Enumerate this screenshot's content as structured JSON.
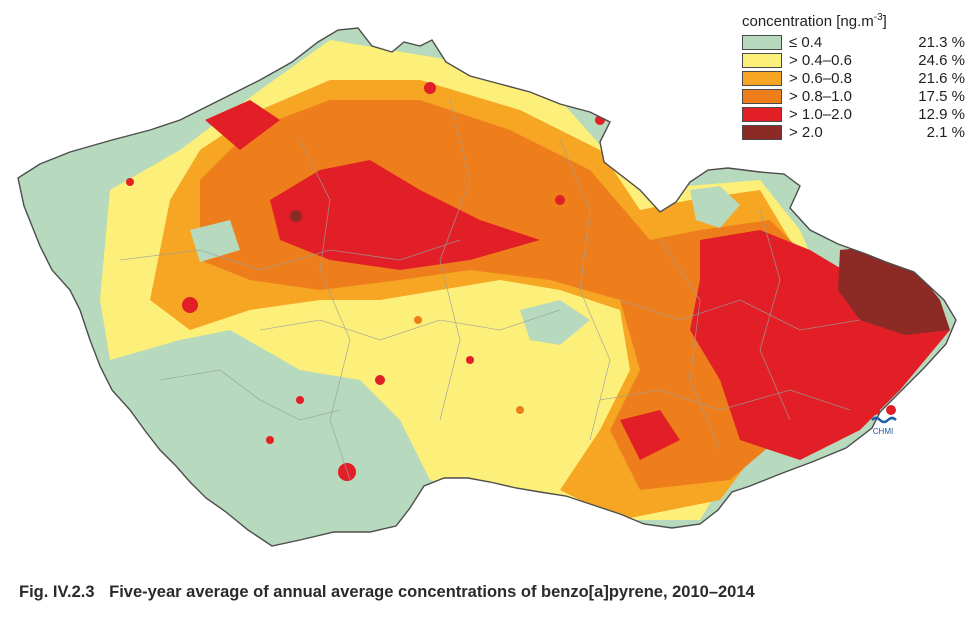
{
  "legend": {
    "title": "concentration [ng.m",
    "title_sup": "-3",
    "title_close": "]",
    "classes": [
      {
        "label": "≤ 0.4",
        "percent": "21.3 %",
        "color": "#b7d9bd"
      },
      {
        "label": "> 0.4–0.6",
        "percent": "24.6 %",
        "color": "#fdf07a"
      },
      {
        "label": "> 0.6–0.8",
        "percent": "21.6 %",
        "color": "#f6a623"
      },
      {
        "label": "> 0.8–1.0",
        "percent": "17.5 %",
        "color": "#ee7e1c"
      },
      {
        "label": "> 1.0–2.0",
        "percent": "12.9 %",
        "color": "#e21f26"
      },
      {
        "label": "> 2.0",
        "percent": "2.1 %",
        "color": "#8c2a26"
      }
    ]
  },
  "logo": {
    "text": "CHMI",
    "icon": "chmi-logo"
  },
  "caption": {
    "number": "Fig. IV.2.3",
    "text": "Five-year average of annual average concentrations of benzo[a]pyrene, 2010–2014"
  }
}
